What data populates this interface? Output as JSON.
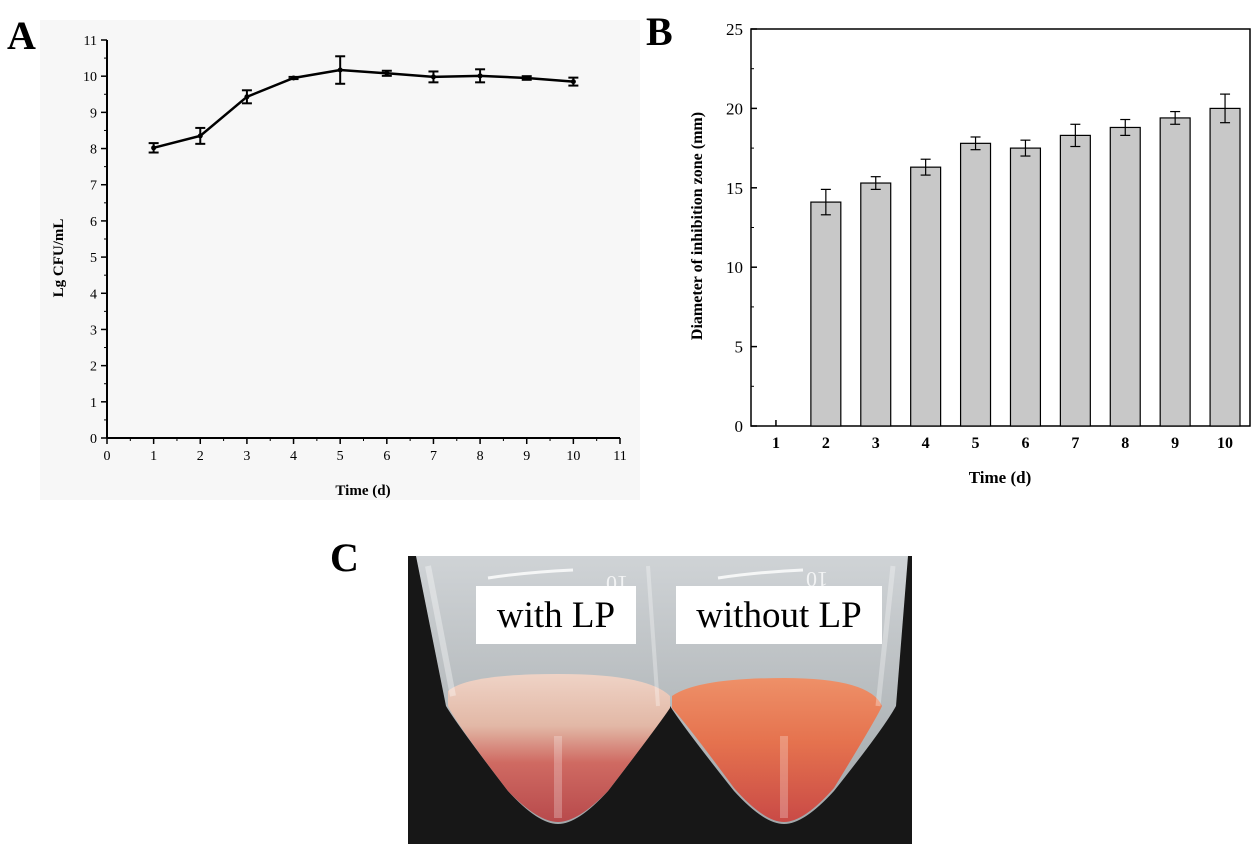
{
  "panels": {
    "a": "A",
    "b": "B",
    "c": "C"
  },
  "chart_data": [
    {
      "type": "line",
      "panel": "A",
      "xlabel": "Time (d)",
      "ylabel": "Lg CFU/mL",
      "xlim": [
        0,
        11
      ],
      "ylim": [
        0,
        11
      ],
      "xticks": [
        0,
        1,
        2,
        3,
        4,
        5,
        6,
        7,
        8,
        9,
        10,
        11
      ],
      "yticks": [
        0,
        1,
        2,
        3,
        4,
        5,
        6,
        7,
        8,
        9,
        10,
        11
      ],
      "x": [
        1,
        2,
        3,
        4,
        5,
        6,
        7,
        8,
        9,
        10
      ],
      "y": [
        8.02,
        8.35,
        9.43,
        9.95,
        10.17,
        10.08,
        9.98,
        10.01,
        9.95,
        9.85
      ],
      "err": [
        0.13,
        0.22,
        0.18,
        0.03,
        0.38,
        0.07,
        0.15,
        0.18,
        0.05,
        0.11
      ]
    },
    {
      "type": "bar",
      "panel": "B",
      "xlabel": "Time (d)",
      "ylabel": "Diameter of inhibition zone (mm)",
      "ylim": [
        0,
        25
      ],
      "yticks": [
        0,
        5,
        10,
        15,
        20,
        25
      ],
      "categories": [
        "1",
        "2",
        "3",
        "4",
        "5",
        "6",
        "7",
        "8",
        "9",
        "10"
      ],
      "values": [
        null,
        14.1,
        15.3,
        16.3,
        17.8,
        17.5,
        18.3,
        18.8,
        19.4,
        20.0
      ],
      "err": [
        null,
        0.8,
        0.4,
        0.5,
        0.4,
        0.5,
        0.7,
        0.5,
        0.4,
        0.9
      ]
    }
  ],
  "photo": {
    "label_left": "with LP",
    "label_right": "without LP",
    "tube_mark_left": "10",
    "tube_mark_right": "10"
  },
  "colors": {
    "bar_fill": "#c8c8c8",
    "line": "#000000",
    "tube_top_left": "#e8c2b2",
    "tube_bottom_left": "#cc5a55",
    "tube_top_right": "#e98058",
    "tube_bottom_right": "#d8584a"
  }
}
